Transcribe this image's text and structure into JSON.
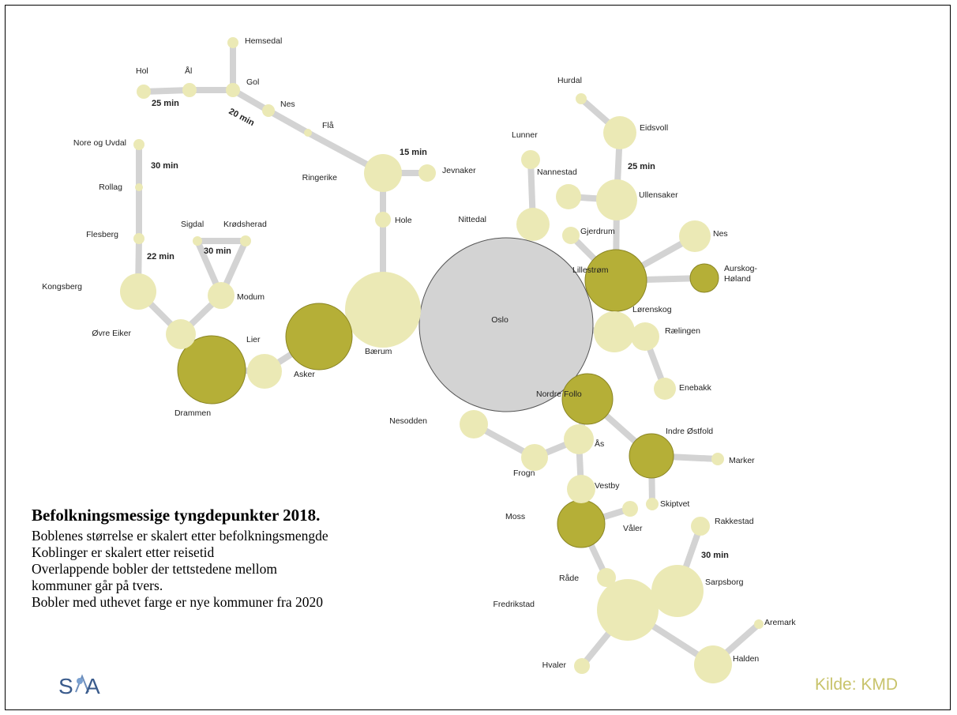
{
  "colors": {
    "plain": "#ebe9b5",
    "new_municipality": "#b5af37",
    "new_stroke": "#8a8524",
    "oslo": "#d3d3d3",
    "oslo_stroke": "#555555",
    "edge": "#d3d3d3",
    "source_text": "#c8c36b",
    "logo_blue": "#3a5b8c"
  },
  "nodes": [
    {
      "name": "Hemsedal",
      "kind": "plain"
    },
    {
      "name": "Hol",
      "kind": "plain"
    },
    {
      "name": "Ål",
      "kind": "plain"
    },
    {
      "name": "Gol",
      "kind": "plain"
    },
    {
      "name": "Nes",
      "kind": "plain"
    },
    {
      "name": "Flå",
      "kind": "plain"
    },
    {
      "name": "Ringerike",
      "kind": "plain"
    },
    {
      "name": "Jevnaker",
      "kind": "plain"
    },
    {
      "name": "Hole",
      "kind": "plain"
    },
    {
      "name": "Bærum",
      "kind": "plain"
    },
    {
      "name": "Oslo",
      "kind": "oslo"
    },
    {
      "name": "Nore og Uvdal",
      "kind": "plain"
    },
    {
      "name": "Rollag",
      "kind": "plain"
    },
    {
      "name": "Flesberg",
      "kind": "plain"
    },
    {
      "name": "Kongsberg",
      "kind": "plain"
    },
    {
      "name": "Øvre Eiker",
      "kind": "plain"
    },
    {
      "name": "Drammen",
      "kind": "new"
    },
    {
      "name": "Sigdal",
      "kind": "plain"
    },
    {
      "name": "Krødsherad",
      "kind": "plain"
    },
    {
      "name": "Modum",
      "kind": "plain"
    },
    {
      "name": "Lier",
      "kind": "plain"
    },
    {
      "name": "Asker",
      "kind": "new"
    },
    {
      "name": "Lunner",
      "kind": "plain"
    },
    {
      "name": "Nannestad",
      "kind": "plain"
    },
    {
      "name": "Nittedal",
      "kind": "plain"
    },
    {
      "name": "Hurdal",
      "kind": "plain"
    },
    {
      "name": "Eidsvoll",
      "kind": "plain"
    },
    {
      "name": "Ullensaker",
      "kind": "plain"
    },
    {
      "name": "Gjerdrum",
      "kind": "plain"
    },
    {
      "name": "Nes",
      "kind": "plain"
    },
    {
      "name": "Lillestrøm",
      "kind": "new"
    },
    {
      "name": "Aurskog-Høland",
      "kind": "new"
    },
    {
      "name": "Lørenskog",
      "kind": "plain"
    },
    {
      "name": "Rælingen",
      "kind": "plain"
    },
    {
      "name": "Enebakk",
      "kind": "plain"
    },
    {
      "name": "Nordre Follo",
      "kind": "new"
    },
    {
      "name": "Nesodden",
      "kind": "plain"
    },
    {
      "name": "Ås",
      "kind": "plain"
    },
    {
      "name": "Frogn",
      "kind": "plain"
    },
    {
      "name": "Vestby",
      "kind": "plain"
    },
    {
      "name": "Indre Østfold",
      "kind": "new"
    },
    {
      "name": "Marker",
      "kind": "plain"
    },
    {
      "name": "Skiptvet",
      "kind": "plain"
    },
    {
      "name": "Moss",
      "kind": "new"
    },
    {
      "name": "Våler",
      "kind": "plain"
    },
    {
      "name": "Rakkestad",
      "kind": "plain"
    },
    {
      "name": "Råde",
      "kind": "plain"
    },
    {
      "name": "Sarpsborg",
      "kind": "plain"
    },
    {
      "name": "Fredrikstad",
      "kind": "plain"
    },
    {
      "name": "Aremark",
      "kind": "plain"
    },
    {
      "name": "Halden",
      "kind": "plain"
    },
    {
      "name": "Hvaler",
      "kind": "plain"
    }
  ],
  "edge_labels": [
    "25 min",
    "20 min",
    "15 min",
    "30 min",
    "22 min",
    "30 min",
    "25 min",
    "30 min"
  ],
  "caption": {
    "title": "Befolkningsmessige tyngdepunkter 2018.",
    "lines": [
      "Boblenes størrelse er skalert etter befolkningsmengde",
      "Koblinger er skalert etter reisetid",
      "Overlappende bobler der tettstedene mellom",
      "kommuner går på tvers.",
      "Bobler med uthevet farge er nye kommuner fra 2020"
    ]
  },
  "source": "Kilde: KMD",
  "logo": {
    "text": "SIA",
    "icon": "sia-logo-icon"
  }
}
